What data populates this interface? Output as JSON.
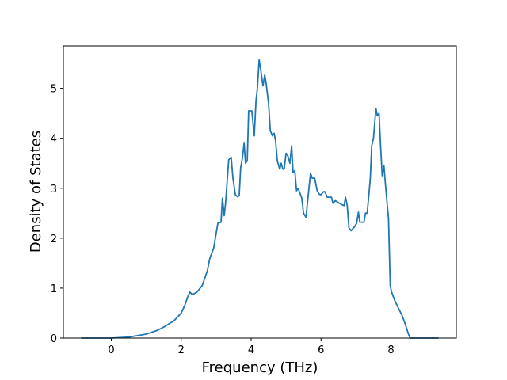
{
  "chart_data": {
    "type": "line",
    "xlabel": "Frequency (THz)",
    "ylabel": "Density of States",
    "x": [
      -0.86,
      0,
      0.5,
      1.0,
      1.3,
      1.5,
      1.8,
      2.0,
      2.1,
      2.2,
      2.25,
      2.32,
      2.45,
      2.6,
      2.75,
      2.82,
      2.93,
      3.05,
      3.14,
      3.18,
      3.23,
      3.27,
      3.36,
      3.43,
      3.48,
      3.55,
      3.61,
      3.66,
      3.7,
      3.75,
      3.8,
      3.84,
      3.89,
      3.93,
      4.02,
      4.09,
      4.14,
      4.18,
      4.23,
      4.27,
      4.34,
      4.39,
      4.43,
      4.5,
      4.55,
      4.61,
      4.66,
      4.7,
      4.75,
      4.82,
      4.86,
      4.91,
      4.95,
      5.0,
      5.05,
      5.11,
      5.16,
      5.2,
      5.25,
      5.3,
      5.34,
      5.41,
      5.45,
      5.5,
      5.57,
      5.64,
      5.7,
      5.75,
      5.82,
      5.89,
      5.95,
      6.0,
      6.07,
      6.11,
      6.18,
      6.3,
      6.34,
      6.41,
      6.57,
      6.66,
      6.7,
      6.75,
      6.8,
      6.86,
      6.95,
      7.02,
      7.07,
      7.11,
      7.23,
      7.27,
      7.32,
      7.36,
      7.41,
      7.45,
      7.5,
      7.57,
      7.61,
      7.66,
      7.7,
      7.75,
      7.8,
      7.84,
      7.89,
      7.93,
      7.98,
      8.02,
      8.11,
      8.2,
      8.32,
      8.41,
      8.5,
      8.55,
      9.36
    ],
    "values": [
      0,
      0,
      0.02,
      0.08,
      0.15,
      0.22,
      0.35,
      0.5,
      0.65,
      0.85,
      0.92,
      0.87,
      0.92,
      1.05,
      1.35,
      1.6,
      1.8,
      2.3,
      2.32,
      2.8,
      2.45,
      2.7,
      3.57,
      3.62,
      3.2,
      2.87,
      2.83,
      2.85,
      3.4,
      3.6,
      3.9,
      3.5,
      3.55,
      4.55,
      4.55,
      4.05,
      4.75,
      5.0,
      5.57,
      5.4,
      5.05,
      5.27,
      5.1,
      4.7,
      4.15,
      4.05,
      4.1,
      3.95,
      3.55,
      3.38,
      3.5,
      3.38,
      3.4,
      3.7,
      3.65,
      3.5,
      3.85,
      3.32,
      3.35,
      2.95,
      3.0,
      2.88,
      2.8,
      2.5,
      2.42,
      2.9,
      3.3,
      3.2,
      3.2,
      2.95,
      2.88,
      2.87,
      2.93,
      2.93,
      2.82,
      2.82,
      2.7,
      2.75,
      2.68,
      2.65,
      2.82,
      2.65,
      2.2,
      2.15,
      2.22,
      2.3,
      2.52,
      2.32,
      2.32,
      2.5,
      2.5,
      2.8,
      3.2,
      3.85,
      4.0,
      4.6,
      4.45,
      4.5,
      3.9,
      3.25,
      3.45,
      3.1,
      2.7,
      2.4,
      1.05,
      0.92,
      0.75,
      0.62,
      0.45,
      0.28,
      0.08,
      0,
      0
    ],
    "color": "#1f77b4",
    "xlim": [
      -1.37,
      9.87
    ],
    "xticks": [
      0,
      2,
      4,
      6,
      8
    ],
    "ylim": [
      0,
      5.85
    ],
    "yticks": [
      0,
      1,
      2,
      3,
      4,
      5
    ]
  }
}
